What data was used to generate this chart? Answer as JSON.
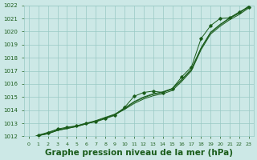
{
  "title": "Graphe pression niveau de la mer (hPa)",
  "x_values": [
    0,
    1,
    2,
    3,
    4,
    5,
    6,
    7,
    8,
    9,
    10,
    11,
    12,
    13,
    14,
    15,
    16,
    17,
    18,
    19,
    20,
    21,
    22,
    23
  ],
  "line1": [
    1011.8,
    1012.05,
    1012.2,
    1012.45,
    1012.6,
    1012.75,
    1012.95,
    1013.15,
    1013.4,
    1013.65,
    1014.05,
    1014.5,
    1014.85,
    1015.1,
    1015.25,
    1015.5,
    1016.2,
    1017.0,
    1018.6,
    1019.8,
    1020.4,
    1020.9,
    1021.3,
    1021.8
  ],
  "line2": [
    1011.8,
    1012.05,
    1012.2,
    1012.45,
    1012.6,
    1012.75,
    1012.95,
    1013.15,
    1013.4,
    1013.65,
    1014.1,
    1014.6,
    1014.95,
    1015.2,
    1015.35,
    1015.6,
    1016.3,
    1017.1,
    1018.7,
    1019.9,
    1020.5,
    1021.0,
    1021.4,
    1021.9
  ],
  "line3": [
    1011.8,
    1012.05,
    1012.25,
    1012.5,
    1012.65,
    1012.8,
    1013.0,
    1013.2,
    1013.45,
    1013.7,
    1014.15,
    1014.65,
    1015.0,
    1015.25,
    1015.4,
    1015.65,
    1016.35,
    1017.15,
    1018.75,
    1019.95,
    1020.55,
    1021.05,
    1021.45,
    1021.95
  ],
  "line_marker": [
    1011.8,
    1012.1,
    1012.3,
    1012.55,
    1012.7,
    1012.8,
    1013.0,
    1013.1,
    1013.35,
    1013.6,
    1014.2,
    1015.05,
    1015.35,
    1015.45,
    1015.35,
    1015.65,
    1016.55,
    1017.3,
    1019.45,
    1020.45,
    1021.0,
    1021.05,
    1021.5,
    1021.85
  ],
  "ylim": [
    1012,
    1022
  ],
  "yticks": [
    1012,
    1013,
    1014,
    1015,
    1016,
    1017,
    1018,
    1019,
    1020,
    1021,
    1022
  ],
  "xticks": [
    0,
    1,
    2,
    3,
    4,
    5,
    6,
    7,
    8,
    9,
    10,
    11,
    12,
    13,
    14,
    15,
    16,
    17,
    18,
    19,
    20,
    21,
    22,
    23
  ],
  "line_color": "#1a5c1a",
  "bg_color": "#cce8e6",
  "grid_color": "#99c9c4",
  "title_color": "#1a5c1a",
  "title_fontsize": 7.5
}
